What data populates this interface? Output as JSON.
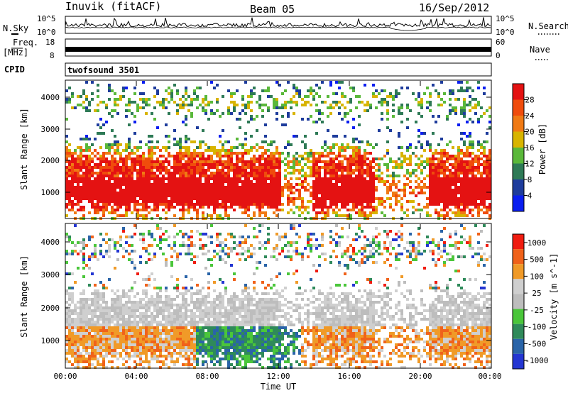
{
  "header": {
    "station": "Inuvik (fitACF)",
    "beam": "Beam 05",
    "date": "16/Sep/2012"
  },
  "strips": {
    "nsky_label": "N.Sky",
    "nsky_ticks": [
      "10^5",
      "10^0"
    ],
    "nsearch_label": "N.Search",
    "nsearch_ticks": [
      "10^5",
      "10^0"
    ],
    "freq_label": "Freq.",
    "freq_unit": "[MHz]",
    "freq_ticks": [
      "18",
      "8"
    ],
    "nave_label": "Nave",
    "nave_ticks": [
      "60",
      "0"
    ],
    "cpid_label": "CPID",
    "cpid_value": "twofsound 3501"
  },
  "colors": {
    "power": [
      "#0a1ef0",
      "#1e3c9c",
      "#2e7a56",
      "#5ab83a",
      "#d8b400",
      "#f07a14",
      "#f04c0c",
      "#e41212"
    ],
    "velocity": [
      "#f01c10",
      "#f0621a",
      "#f09a28",
      "#cfcfcf",
      "#bdbdbd",
      "#4ac63a",
      "#2f8a5a",
      "#2a64a8",
      "#2436d2"
    ]
  },
  "chart_data": [
    {
      "type": "heatmap",
      "parameter": "power",
      "ylabel": "Slant Range [km]",
      "y_ticks": [
        "1000",
        "2000",
        "3000",
        "4000"
      ],
      "ylim": [
        200,
        4500
      ],
      "colorbar_label": "Power [dB]",
      "colorbar_ticks": [
        "4",
        "8",
        "12",
        "16",
        "20",
        "24",
        "28"
      ],
      "xlim_hours": [
        0,
        24
      ]
    },
    {
      "type": "heatmap",
      "parameter": "velocity",
      "ylabel": "Slant Range [km]",
      "y_ticks": [
        "1000",
        "2000",
        "3000",
        "4000"
      ],
      "ylim": [
        200,
        4500
      ],
      "colorbar_label": "Velocity [m s^-1]",
      "colorbar_ticks": [
        "1000",
        "500",
        "100",
        "25",
        "-25",
        "-100",
        "-500",
        "-1000"
      ],
      "xlabel": "Time UT",
      "x_ticks": [
        "00:00",
        "04:00",
        "08:00",
        "12:00",
        "16:00",
        "20:00",
        "00:00"
      ],
      "xlim_hours": [
        0,
        24
      ]
    }
  ]
}
